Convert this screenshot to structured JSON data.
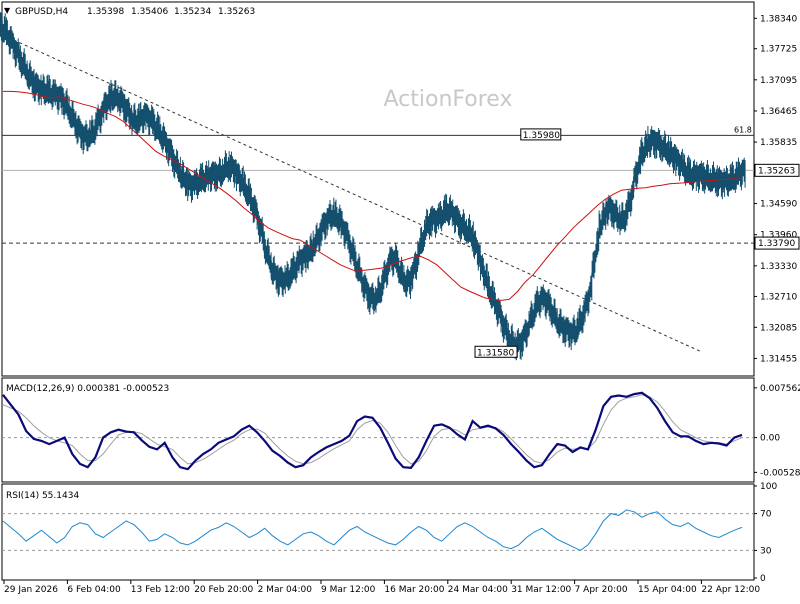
{
  "chart_data": [
    {
      "type": "line",
      "panel": "price",
      "symbol_header": "GBPUSD,H4",
      "ohlc": [
        "1.35398",
        "1.35406",
        "1.35234",
        "1.35263"
      ],
      "watermark": "ActionForex",
      "y_ticks": [
        "1.38340",
        "1.37725",
        "1.37095",
        "1.36465",
        "1.35835",
        "1.35263",
        "1.34590",
        "1.33960",
        "1.33330",
        "1.32710",
        "1.32085",
        "1.31455"
      ],
      "ylim": [
        1.3112,
        1.3865
      ],
      "levels": {
        "fib_label": "61.8",
        "fib_value": 1.3597,
        "current_price": 1.35263,
        "current_label": "1.35263",
        "support_value": 1.3379,
        "support_label": "1.33790",
        "high_tag": "1.35980",
        "high_value": 1.3598,
        "low_tag": "1.31580",
        "low_value": 1.3158
      },
      "trendline": [
        [
          0,
          1.38
        ],
        [
          100,
          1.316
        ]
      ],
      "price_series": [
        1.3815,
        1.3788,
        1.3762,
        1.3735,
        1.3708,
        1.369,
        1.3688,
        1.368,
        1.3675,
        1.366,
        1.363,
        1.36,
        1.359,
        1.3605,
        1.364,
        1.367,
        1.368,
        1.3665,
        1.364,
        1.362,
        1.364,
        1.363,
        1.361,
        1.359,
        1.356,
        1.353,
        1.3505,
        1.349,
        1.3505,
        1.351,
        1.352,
        1.3515,
        1.354,
        1.353,
        1.3505,
        1.348,
        1.345,
        1.34,
        1.3345,
        1.331,
        1.33,
        1.331,
        1.3335,
        1.335,
        1.336,
        1.339,
        1.342,
        1.344,
        1.343,
        1.34,
        1.336,
        1.332,
        1.328,
        1.326,
        1.328,
        1.333,
        1.336,
        1.331,
        1.329,
        1.333,
        1.339,
        1.343,
        1.342,
        1.344,
        1.345,
        1.3425,
        1.341,
        1.3405,
        1.336,
        1.331,
        1.327,
        1.324,
        1.32,
        1.3175,
        1.317,
        1.32,
        1.324,
        1.327,
        1.326,
        1.323,
        1.321,
        1.32,
        1.3195,
        1.323,
        1.326,
        1.338,
        1.344,
        1.3455,
        1.343,
        1.342,
        1.347,
        1.354,
        1.3575,
        1.359,
        1.358,
        1.357,
        1.3555,
        1.354,
        1.352,
        1.3515,
        1.3518,
        1.351,
        1.351,
        1.35,
        1.3505,
        1.351,
        1.3526
      ],
      "ma_series": [
        1.3686,
        1.3686,
        1.3685,
        1.3683,
        1.368,
        1.3676,
        1.3673,
        1.3675,
        1.367,
        1.3665,
        1.366,
        1.3656,
        1.365,
        1.3642,
        1.3635,
        1.3625,
        1.361,
        1.3595,
        1.358,
        1.3565,
        1.3555,
        1.3548,
        1.354,
        1.353,
        1.352,
        1.351,
        1.35,
        1.349,
        1.3478,
        1.3465,
        1.345,
        1.3437,
        1.3422,
        1.341,
        1.3402,
        1.3395,
        1.3388,
        1.3385,
        1.3375,
        1.3365,
        1.3355,
        1.3345,
        1.3335,
        1.3328,
        1.3322,
        1.3324,
        1.3326,
        1.3328,
        1.3332,
        1.334,
        1.3345,
        1.335,
        1.3352,
        1.3345,
        1.3335,
        1.332,
        1.3305,
        1.329,
        1.3282,
        1.3275,
        1.3268,
        1.3265,
        1.3263,
        1.3265,
        1.328,
        1.33,
        1.3315,
        1.3335,
        1.3355,
        1.3375,
        1.3392,
        1.341,
        1.3425,
        1.344,
        1.3455,
        1.3468,
        1.3478,
        1.3486,
        1.3488,
        1.349,
        1.3491,
        1.3494,
        1.3496,
        1.3499,
        1.35,
        1.3501,
        1.3503,
        1.3504,
        1.3505,
        1.3507,
        1.3508,
        1.3509,
        1.3508
      ]
    },
    {
      "type": "line",
      "panel": "macd",
      "label": "MACD(12,26,9) 0.000381 -0.000523",
      "y_ticks": [
        "0.007562",
        "0.00",
        "-0.005289"
      ],
      "ylim": [
        -0.0066,
        0.0089
      ],
      "macd_series": [
        0.0065,
        0.005,
        0.0035,
        0.001,
        -0.0002,
        -0.0005,
        -0.001,
        -0.0005,
        0.0,
        -0.0025,
        -0.004,
        -0.0045,
        -0.003,
        0.0,
        0.0008,
        0.0012,
        0.0009,
        0.0008,
        -0.0004,
        -0.0014,
        -0.0018,
        -0.0008,
        -0.003,
        -0.0045,
        -0.0048,
        -0.0035,
        -0.0025,
        -0.0018,
        -0.0008,
        -0.0003,
        0.0002,
        0.0012,
        0.0018,
        0.0008,
        -0.0005,
        -0.002,
        -0.0028,
        -0.0038,
        -0.0045,
        -0.0042,
        -0.003,
        -0.0022,
        -0.0015,
        -0.001,
        -0.0005,
        0.0003,
        0.0025,
        0.0032,
        0.003,
        0.0015,
        -0.0008,
        -0.0032,
        -0.0045,
        -0.0046,
        -0.003,
        -0.0005,
        0.0018,
        0.002,
        0.0015,
        0.0005,
        -0.0003,
        0.0025,
        0.0015,
        0.0018,
        0.0014,
        0.0004,
        -0.001,
        -0.0022,
        -0.0035,
        -0.0045,
        -0.0042,
        -0.0025,
        -0.001,
        -0.0012,
        -0.0022,
        -0.0015,
        -0.0018,
        0.0012,
        0.0048,
        0.0062,
        0.0064,
        0.0062,
        0.0066,
        0.0068,
        0.006,
        0.0045,
        0.0025,
        0.0008,
        0.0002,
        0.0002,
        -0.0005,
        -0.001,
        -0.0008,
        -0.0009,
        -0.0012,
        0.0,
        0.0004
      ],
      "signal_series": [
        0.005,
        0.0045,
        0.004,
        0.003,
        0.0018,
        0.0008,
        0.0,
        -0.0005,
        -0.0008,
        -0.0012,
        -0.0025,
        -0.0035,
        -0.0035,
        -0.0025,
        -0.001,
        0.0004,
        0.0008,
        0.0009,
        0.0006,
        -0.0002,
        -0.001,
        -0.0014,
        -0.0018,
        -0.003,
        -0.004,
        -0.0038,
        -0.0033,
        -0.0026,
        -0.0018,
        -0.001,
        -0.0004,
        0.0006,
        0.0012,
        0.0013,
        0.0007,
        -0.0006,
        -0.0018,
        -0.0028,
        -0.0036,
        -0.004,
        -0.0038,
        -0.0032,
        -0.0024,
        -0.0017,
        -0.0011,
        -0.0005,
        0.0012,
        0.0022,
        0.0026,
        0.0022,
        0.0008,
        -0.0012,
        -0.003,
        -0.004,
        -0.0036,
        -0.002,
        0.0002,
        0.0012,
        0.0014,
        0.0011,
        0.0004,
        0.0012,
        0.0014,
        0.0016,
        0.0015,
        0.0009,
        -0.0002,
        -0.0014,
        -0.0026,
        -0.0036,
        -0.0039,
        -0.0033,
        -0.0022,
        -0.0016,
        -0.0018,
        -0.0016,
        -0.0017,
        -0.0005,
        0.002,
        0.0042,
        0.0055,
        0.006,
        0.0062,
        0.0065,
        0.0062,
        0.0054,
        0.004,
        0.0024,
        0.0012,
        0.0006,
        0.0,
        -0.0005,
        -0.0007,
        -0.0008,
        -0.001,
        -0.0005,
        0.0
      ]
    },
    {
      "type": "line",
      "panel": "rsi",
      "label": "RSI(14) 55.1434",
      "y_ticks": [
        "100",
        "70",
        "30",
        "0"
      ],
      "levels": [
        70,
        30
      ],
      "ylim": [
        0,
        100
      ],
      "rsi_series": [
        62,
        55,
        48,
        40,
        46,
        52,
        45,
        38,
        44,
        56,
        60,
        58,
        48,
        44,
        50,
        56,
        62,
        58,
        50,
        40,
        42,
        48,
        44,
        38,
        36,
        40,
        46,
        52,
        55,
        60,
        56,
        50,
        44,
        48,
        54,
        46,
        40,
        36,
        42,
        48,
        50,
        46,
        40,
        36,
        44,
        52,
        56,
        50,
        46,
        42,
        38,
        36,
        42,
        50,
        56,
        52,
        44,
        40,
        48,
        56,
        60,
        56,
        50,
        44,
        40,
        34,
        32,
        36,
        44,
        50,
        54,
        48,
        42,
        38,
        34,
        30,
        36,
        48,
        62,
        70,
        68,
        74,
        72,
        66,
        70,
        72,
        64,
        58,
        56,
        60,
        54,
        50,
        46,
        44,
        48,
        52,
        55
      ],
      "x_ticks": [
        "29 Jan 2026",
        "6 Feb 04:00",
        "13 Feb 12:00",
        "20 Feb 20:00",
        "2 Mar 04:00",
        "9 Mar 12:00",
        "16 Mar 20:00",
        "24 Mar 04:00",
        "31 Mar 12:00",
        "7 Apr 20:00",
        "15 Apr 04:00",
        "22 Apr 12:00"
      ]
    }
  ]
}
